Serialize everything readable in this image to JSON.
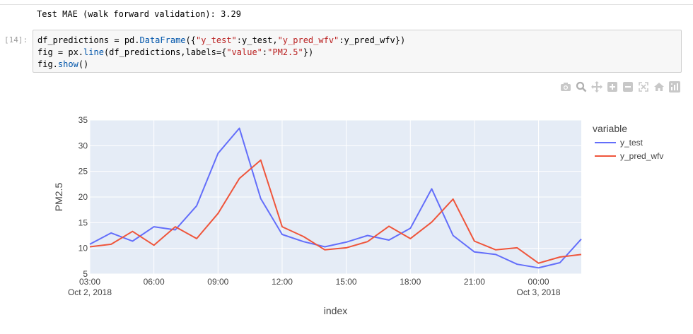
{
  "output": {
    "mae_text": "Test MAE (walk forward validation): 3.29"
  },
  "cell": {
    "prompt": "[14]:",
    "lines": [
      "df_predictions = pd.DataFrame({\"y_test\":y_test,\"y_pred_wfv\":y_pred_wfv})",
      "fig = px.line(df_predictions,labels={\"value\":\"PM2.5\"})",
      "fig.show()"
    ]
  },
  "modebar": {
    "icons": [
      "camera-icon",
      "zoom-icon",
      "pan-icon",
      "zoom-in-icon",
      "zoom-out-icon",
      "autoscale-icon",
      "reset-axes-icon",
      "plotly-logo-icon"
    ],
    "colors": {
      "icon": "#c8c8c8",
      "logo_bg": "#c8c8c8"
    }
  },
  "chart_data": {
    "type": "line",
    "xlabel": "index",
    "ylabel": "PM2.5",
    "ylim": [
      5,
      35
    ],
    "y_ticks": [
      5,
      10,
      15,
      20,
      25,
      30,
      35
    ],
    "x_start": "2018-10-02 03:00",
    "x_end": "2018-10-03 02:00",
    "x_ticks": [
      {
        "x": "2018-10-02 03:00",
        "label": "03:00",
        "sublabel": "Oct 2, 2018"
      },
      {
        "x": "2018-10-02 06:00",
        "label": "06:00",
        "sublabel": ""
      },
      {
        "x": "2018-10-02 09:00",
        "label": "09:00",
        "sublabel": ""
      },
      {
        "x": "2018-10-02 12:00",
        "label": "12:00",
        "sublabel": ""
      },
      {
        "x": "2018-10-02 15:00",
        "label": "15:00",
        "sublabel": ""
      },
      {
        "x": "2018-10-02 18:00",
        "label": "18:00",
        "sublabel": ""
      },
      {
        "x": "2018-10-02 21:00",
        "label": "21:00",
        "sublabel": ""
      },
      {
        "x": "2018-10-03 00:00",
        "label": "00:00",
        "sublabel": "Oct 3, 2018"
      }
    ],
    "x": [
      "2018-10-02 03:00",
      "2018-10-02 04:00",
      "2018-10-02 05:00",
      "2018-10-02 06:00",
      "2018-10-02 07:00",
      "2018-10-02 08:00",
      "2018-10-02 09:00",
      "2018-10-02 10:00",
      "2018-10-02 11:00",
      "2018-10-02 12:00",
      "2018-10-02 13:00",
      "2018-10-02 14:00",
      "2018-10-02 15:00",
      "2018-10-02 16:00",
      "2018-10-02 17:00",
      "2018-10-02 18:00",
      "2018-10-02 19:00",
      "2018-10-02 20:00",
      "2018-10-02 21:00",
      "2018-10-02 22:00",
      "2018-10-02 23:00",
      "2018-10-03 00:00",
      "2018-10-03 01:00",
      "2018-10-03 02:00"
    ],
    "legend_title": "variable",
    "legend_position": "right",
    "grid": true,
    "colors": {
      "plot_bg": "#e5ecf6",
      "grid": "#ffffff"
    },
    "series": [
      {
        "name": "y_test",
        "color": "#636efa",
        "values": [
          10.8,
          13.0,
          11.4,
          14.2,
          13.6,
          18.3,
          28.5,
          33.4,
          19.7,
          12.7,
          11.3,
          10.3,
          11.2,
          12.5,
          11.6,
          13.9,
          21.6,
          12.5,
          9.3,
          8.8,
          6.9,
          6.2,
          7.2,
          11.8
        ]
      },
      {
        "name": "y_pred_wfv",
        "color": "#ef553b",
        "values": [
          10.3,
          10.8,
          13.3,
          10.6,
          14.2,
          11.9,
          16.8,
          23.6,
          27.2,
          14.2,
          12.3,
          9.7,
          10.1,
          11.3,
          14.3,
          11.9,
          15.1,
          19.6,
          11.4,
          9.7,
          10.1,
          7.1,
          8.3,
          8.8
        ]
      }
    ]
  }
}
